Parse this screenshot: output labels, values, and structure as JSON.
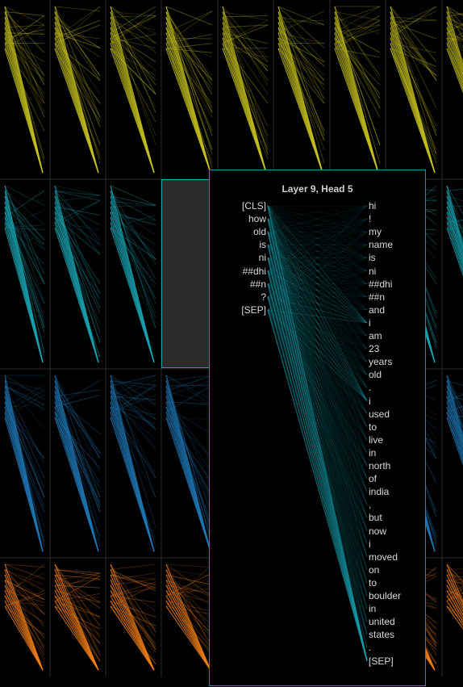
{
  "detail": {
    "title": "Layer 9, Head 5",
    "left_tokens": [
      "[CLS]",
      "how",
      "old",
      "is",
      "ni",
      "##dhi",
      "##n",
      "?",
      "[SEP]"
    ],
    "right_tokens": [
      "hi",
      "!",
      "my",
      "name",
      "is",
      "ni",
      "##dhi",
      "##n",
      "and",
      "i",
      "am",
      "23",
      "years",
      "old",
      ".",
      "i",
      "used",
      "to",
      "live",
      "in",
      "north",
      "of",
      "india",
      ",",
      "but",
      "now",
      "i",
      "moved",
      "on",
      "to",
      "boulder",
      "in",
      "united",
      "states",
      ".",
      "[SEP]"
    ],
    "line_color": "#1aa3b0"
  },
  "grid": {
    "row_colors": [
      "#c6c11f",
      "#1aa3b0",
      "#1f77b4",
      "#f07f18"
    ],
    "selected": {
      "row": 1,
      "col": 3
    }
  }
}
